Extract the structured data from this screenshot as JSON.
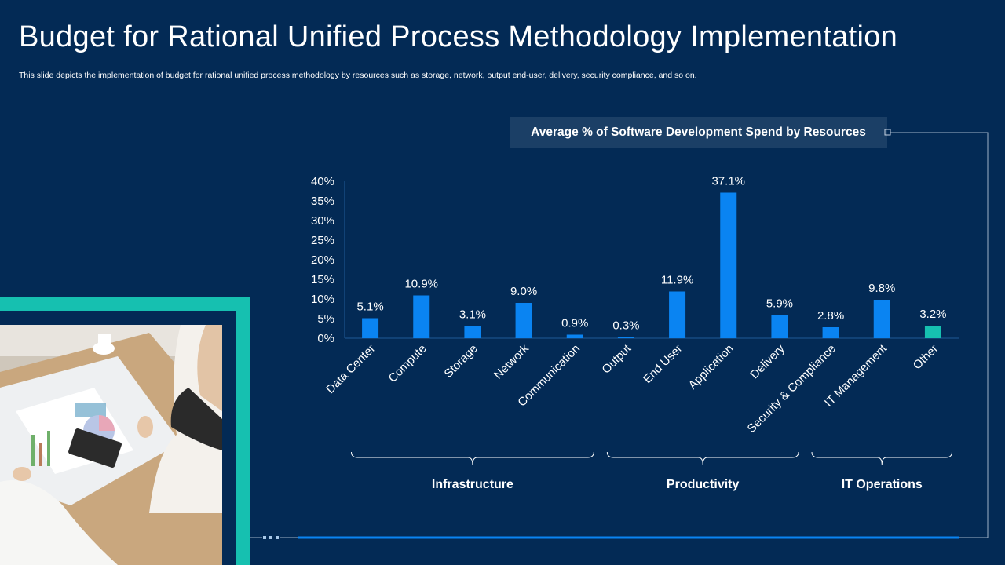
{
  "page": {
    "title": "Budget for Rational Unified Process Methodology Implementation",
    "subtitle": "This slide depicts the implementation of budget for rational unified process methodology by resources such as storage, network, output end-user, delivery, security compliance, and so on."
  },
  "colors": {
    "background": "#032a55",
    "bar": "#0a84f2",
    "bar_highlight": "#16c0b0",
    "accent_frame": "#16c0b0"
  },
  "chart_data": {
    "type": "bar",
    "title": "Average % of Software Development Spend by Resources",
    "categories": [
      "Data Center",
      "Compute",
      "Storage",
      "Network",
      "Communication",
      "Output",
      "End User",
      "Application",
      "Delivery",
      "Security & Compliance",
      "IT Management",
      "Other"
    ],
    "values": [
      5.1,
      10.9,
      3.1,
      9.0,
      0.9,
      0.3,
      11.9,
      37.1,
      5.9,
      2.8,
      9.8,
      3.2
    ],
    "value_labels": [
      "5.1%",
      "10.9%",
      "3.1%",
      "9.0%",
      "0.9%",
      "0.3%",
      "11.9%",
      "37.1%",
      "5.9%",
      "2.8%",
      "9.8%",
      "3.2%"
    ],
    "y_ticks": [
      "0%",
      "5%",
      "10%",
      "15%",
      "20%",
      "25%",
      "30%",
      "35%",
      "40%"
    ],
    "ylim": [
      0,
      40
    ],
    "xlabel": "",
    "ylabel": "",
    "highlight_index": 11,
    "groups": [
      {
        "label": "Infrastructure",
        "start": 0,
        "end": 4
      },
      {
        "label": "Productivity",
        "start": 5,
        "end": 8
      },
      {
        "label": "IT Operations",
        "start": 9,
        "end": 11
      }
    ]
  }
}
